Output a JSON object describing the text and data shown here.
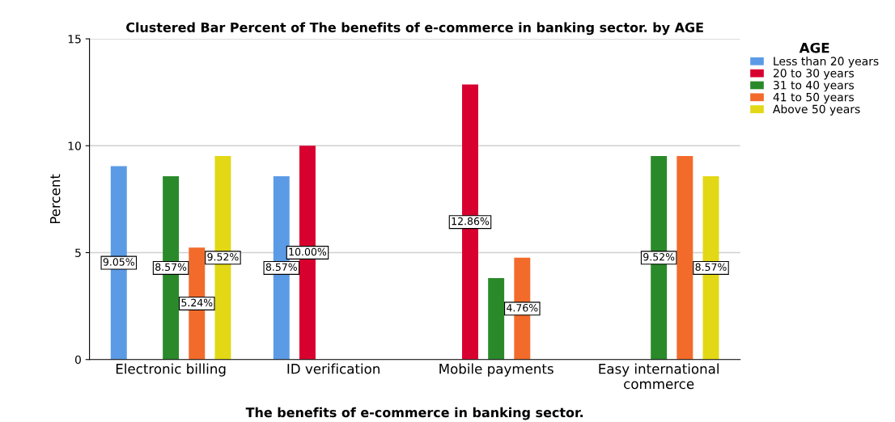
{
  "chart_data": {
    "type": "bar",
    "title": "Clustered Bar Percent of The benefits of e-commerce in banking sector. by AGE",
    "xlabel": "The benefits of e-commerce in banking sector.",
    "ylabel": "Percent",
    "legend_title": "AGE",
    "categories": [
      "Electronic billing",
      "ID verification",
      "Mobile payments",
      "Easy international\ncommerce"
    ],
    "series": [
      {
        "name": "Less than 20 years",
        "color": "#5b9be6",
        "values": [
          9.05,
          8.57,
          null,
          null
        ],
        "value_labels": [
          "9.05%",
          "8.57%",
          null,
          null
        ]
      },
      {
        "name": "20 to 30 years",
        "color": "#d8002f",
        "values": [
          null,
          10.0,
          12.86,
          null
        ],
        "value_labels": [
          null,
          "10.00%",
          "12.86%",
          null
        ]
      },
      {
        "name": "31 to 40 years",
        "color": "#2a8a2a",
        "values": [
          8.57,
          null,
          3.81,
          9.52
        ],
        "value_labels": [
          "8.57%",
          null,
          null,
          "9.52%"
        ]
      },
      {
        "name": "41 to 50 years",
        "color": "#f26b2a",
        "values": [
          5.24,
          null,
          4.76,
          9.52
        ],
        "value_labels": [
          "5.24%",
          null,
          "4.76%",
          null
        ]
      },
      {
        "name": "Above 50 years",
        "color": "#e2d815",
        "values": [
          9.52,
          null,
          null,
          8.57
        ],
        "value_labels": [
          "9.52%",
          null,
          null,
          "8.57%"
        ]
      }
    ],
    "ylim": [
      0,
      15
    ],
    "yticks": [
      0,
      5,
      10,
      15
    ],
    "grid": "y",
    "legend": "right"
  }
}
